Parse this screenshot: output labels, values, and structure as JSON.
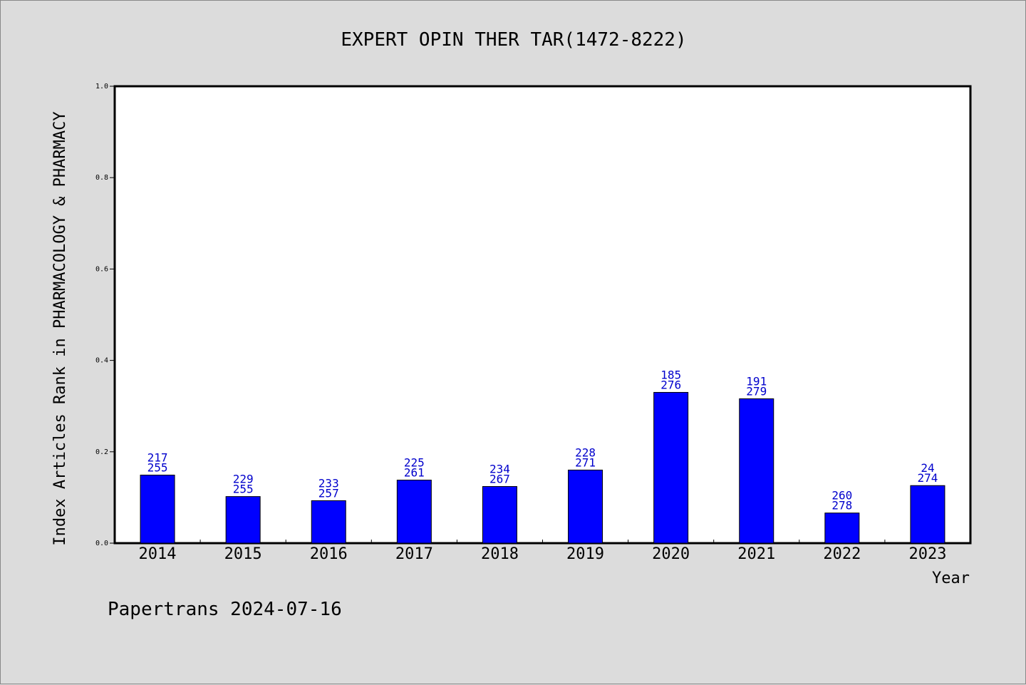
{
  "chart_data": {
    "type": "bar",
    "title": "EXPERT OPIN THER TAR(1472-8222)",
    "xlabel": "Year",
    "ylabel": "Index Articles Rank in PHARMACOLOGY & PHARMACY",
    "ylim": [
      0,
      1.0
    ],
    "yticks": [
      "0.0",
      "0.2",
      "0.4",
      "0.6",
      "0.8",
      "1.0"
    ],
    "categories": [
      "2014",
      "2015",
      "2016",
      "2017",
      "2018",
      "2019",
      "2020",
      "2021",
      "2022",
      "2023"
    ],
    "values": [
      0.149,
      0.102,
      0.093,
      0.138,
      0.124,
      0.16,
      0.33,
      0.316,
      0.066,
      0.126
    ],
    "labels_top": [
      "217",
      "229",
      "233",
      "225",
      "234",
      "228",
      "185",
      "191",
      "260",
      "24"
    ],
    "labels_bottom": [
      "255",
      "255",
      "257",
      "261",
      "267",
      "271",
      "276",
      "279",
      "278",
      "274"
    ],
    "bar_color": "#0000ff",
    "label_color": "#0000cc",
    "grid": false
  },
  "footer": {
    "text": "Papertrans 2024-07-16"
  }
}
